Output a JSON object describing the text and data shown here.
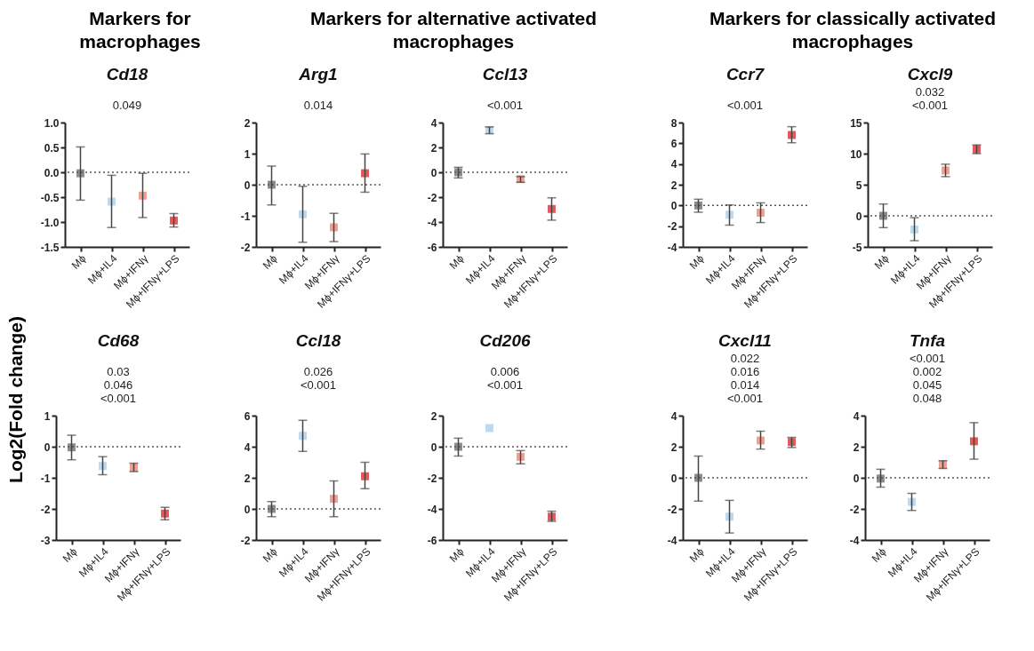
{
  "chart_data": [
    {
      "type": "scatter",
      "title": "Cd18",
      "subtitle": "Markers for macrophages",
      "ylabel": "Log2(Fold change)",
      "categories": [
        "Mϕ",
        "Mϕ+IL4",
        "Mϕ+IFNγ",
        "Mϕ+IFNγ+LPS"
      ],
      "values": [
        -0.02,
        -0.59,
        -0.47,
        -0.97
      ],
      "errors": [
        [
          -0.56,
          0.51
        ],
        [
          -1.11,
          -0.06
        ],
        [
          -0.91,
          -0.02
        ],
        [
          -1.1,
          -0.83
        ]
      ],
      "colors": [
        "#8c8c8c",
        "#bcd9ee",
        "#f0a090",
        "#e05a5a"
      ],
      "marker": "square",
      "ylim": [
        -1.5,
        1
      ],
      "yticks": [
        -1.5,
        {
          "value": -1,
          "label": "-1.0"
        },
        -0.5,
        {
          "value": 0,
          "label": "0.0"
        },
        0.5,
        {
          "value": 1,
          "label": "1.0"
        }
      ],
      "ref_lines": [
        {
          "axis": "y",
          "value": 0,
          "line_style": "dotted"
        }
      ],
      "annotations": [
        "0.049"
      ]
    },
    {
      "type": "scatter",
      "title": "Arg1",
      "subtitle": "Markers for alternative activated macrophages",
      "categories": [
        "Mϕ",
        "Mϕ+IL4",
        "Mϕ+IFNγ",
        "Mϕ+IFNγ+LPS"
      ],
      "values": [
        0,
        -0.95,
        -1.37,
        0.37
      ],
      "errors": [
        [
          -0.65,
          0.6
        ],
        [
          -1.85,
          -0.05
        ],
        [
          -1.83,
          -0.92
        ],
        [
          -0.24,
          0.99
        ]
      ],
      "colors": [
        "#8c8c8c",
        "#bcd9ee",
        "#f0a090",
        "#e05a5a"
      ],
      "marker": "square",
      "ylim": [
        -2,
        2
      ],
      "yticks": [
        -2,
        -1,
        0,
        1,
        2
      ],
      "ref_lines": [
        {
          "axis": "y",
          "value": 0,
          "line_style": "dotted"
        }
      ],
      "annotations": [
        "0.014"
      ]
    },
    {
      "type": "scatter",
      "title": "Ccl13",
      "categories": [
        "Mϕ",
        "Mϕ+IL4",
        "Mϕ+IFNγ",
        "Mϕ+IFNγ+LPS"
      ],
      "values": [
        0,
        3.4,
        -0.55,
        -2.95
      ],
      "errors": [
        [
          -0.45,
          0.4
        ],
        [
          3.1,
          3.65
        ],
        [
          -0.8,
          -0.35
        ],
        [
          -3.85,
          -2.05
        ]
      ],
      "colors": [
        "#8c8c8c",
        "#bcd9ee",
        "#f0a090",
        "#e05a5a"
      ],
      "marker": "square",
      "ylim": [
        -6,
        4
      ],
      "yticks": [
        -6,
        -4,
        -2,
        0,
        2,
        4
      ],
      "ref_lines": [
        {
          "axis": "y",
          "value": 0,
          "line_style": "dotted"
        }
      ],
      "annotations": [
        "<0.001"
      ]
    },
    {
      "type": "scatter",
      "title": "Ccr7",
      "subtitle": "Markers for classically activated macrophages",
      "categories": [
        "Mϕ",
        "Mϕ+IL4",
        "Mϕ+IFNγ",
        "Mϕ+IFNγ+LPS"
      ],
      "values": [
        0,
        -0.9,
        -0.7,
        6.8
      ],
      "errors": [
        [
          -0.65,
          0.6
        ],
        [
          -1.9,
          0.05
        ],
        [
          -1.65,
          0.25
        ],
        [
          6.05,
          7.6
        ]
      ],
      "colors": [
        "#8c8c8c",
        "#bcd9ee",
        "#f0a090",
        "#e05a5a"
      ],
      "marker": "square",
      "ylim": [
        -4,
        8
      ],
      "yticks": [
        -4,
        -2,
        0,
        2,
        4,
        6,
        8
      ],
      "ref_lines": [
        {
          "axis": "y",
          "value": 0,
          "line_style": "dotted"
        }
      ],
      "annotations": [
        "<0.001"
      ]
    },
    {
      "type": "scatter",
      "title": "Cxcl9",
      "categories": [
        "Mϕ",
        "Mϕ+IL4",
        "Mϕ+IFNγ",
        "Mϕ+IFNγ+LPS"
      ],
      "values": [
        0,
        -2.2,
        7.3,
        10.7
      ],
      "errors": [
        [
          -1.9,
          1.9
        ],
        [
          -4,
          -0.3
        ],
        [
          6.3,
          8.3
        ],
        [
          10,
          11.4
        ]
      ],
      "colors": [
        "#8c8c8c",
        "#bcd9ee",
        "#f0a090",
        "#e05a5a"
      ],
      "marker": "square",
      "ylim": [
        -5,
        15
      ],
      "yticks": [
        -5,
        0,
        5,
        10,
        15
      ],
      "ref_lines": [
        {
          "axis": "y",
          "value": 0,
          "line_style": "dotted"
        }
      ],
      "annotations": [
        "0.032",
        "<0.001"
      ]
    },
    {
      "type": "scatter",
      "title": "Cd68",
      "categories": [
        "Mϕ",
        "Mϕ+IL4",
        "Mϕ+IFNγ",
        "Mϕ+IFNγ+LPS"
      ],
      "values": [
        -0.02,
        -0.62,
        -0.67,
        -2.15
      ],
      "errors": [
        [
          -0.42,
          0.37
        ],
        [
          -0.9,
          -0.32
        ],
        [
          -0.8,
          -0.53
        ],
        [
          -2.35,
          -1.95
        ]
      ],
      "colors": [
        "#8c8c8c",
        "#bcd9ee",
        "#f0a090",
        "#e05a5a"
      ],
      "marker": "square",
      "ylim": [
        -3,
        1
      ],
      "yticks": [
        -3,
        -2,
        -1,
        0,
        1
      ],
      "ref_lines": [
        {
          "axis": "y",
          "value": 0,
          "line_style": "dotted"
        }
      ],
      "annotations": [
        "0.03",
        "0.046",
        "<0.001"
      ]
    },
    {
      "type": "scatter",
      "title": "Ccl18",
      "categories": [
        "Mϕ",
        "Mϕ+IL4",
        "Mϕ+IFNγ",
        "Mϕ+IFNγ+LPS"
      ],
      "values": [
        0,
        4.7,
        0.65,
        2.1
      ],
      "errors": [
        [
          -0.5,
          0.47
        ],
        [
          3.7,
          5.7
        ],
        [
          -0.5,
          1.8
        ],
        [
          1.3,
          3
        ]
      ],
      "colors": [
        "#8c8c8c",
        "#bcd9ee",
        "#f0a090",
        "#e05a5a"
      ],
      "marker": "square",
      "ylim": [
        -2,
        6
      ],
      "yticks": [
        -2,
        0,
        2,
        4,
        6
      ],
      "ref_lines": [
        {
          "axis": "y",
          "value": 0,
          "line_style": "dotted"
        }
      ],
      "annotations": [
        "0.026",
        "<0.001"
      ]
    },
    {
      "type": "scatter",
      "title": "Cd206",
      "categories": [
        "Mϕ",
        "Mϕ+IL4",
        "Mϕ+IFNγ",
        "Mϕ+IFNγ+LPS"
      ],
      "values": [
        0,
        1.2,
        -0.65,
        -4.5
      ],
      "errors": [
        [
          -0.6,
          0.55
        ],
        null,
        [
          -1.1,
          -0.25
        ],
        [
          -4.8,
          -4.15
        ]
      ],
      "colors": [
        "#8c8c8c",
        "#bcd9ee",
        "#f0a090",
        "#e05a5a"
      ],
      "marker": "square",
      "ylim": [
        -6,
        2
      ],
      "yticks": [
        -6,
        -4,
        -2,
        0,
        2
      ],
      "ref_lines": [
        {
          "axis": "y",
          "value": 0,
          "line_style": "dotted"
        }
      ],
      "annotations": [
        "0.006",
        "<0.001"
      ]
    },
    {
      "type": "scatter",
      "title": "Cxcl11",
      "categories": [
        "Mϕ",
        "Mϕ+IL4",
        "Mϕ+IFNγ",
        "Mϕ+IFNγ+LPS"
      ],
      "values": [
        0,
        -2.5,
        2.4,
        2.3
      ],
      "errors": [
        [
          -1.5,
          1.4
        ],
        [
          -3.55,
          -1.45
        ],
        [
          1.85,
          3
        ],
        [
          1.95,
          2.6
        ]
      ],
      "colors": [
        "#8c8c8c",
        "#bcd9ee",
        "#f0a090",
        "#e05a5a"
      ],
      "marker": "square",
      "ylim": [
        -4,
        4
      ],
      "yticks": [
        -4,
        -2,
        0,
        2,
        4
      ],
      "ref_lines": [
        {
          "axis": "y",
          "value": 0,
          "line_style": "dotted"
        }
      ],
      "annotations": [
        "0.022",
        "0.016",
        "0.014",
        "<0.001"
      ]
    },
    {
      "type": "scatter",
      "title": "Tnfa",
      "categories": [
        "Mϕ",
        "Mϕ+IL4",
        "Mϕ+IFNγ",
        "Mϕ+IFNγ+LPS"
      ],
      "values": [
        -0.05,
        -1.55,
        0.85,
        2.35
      ],
      "errors": [
        [
          -0.6,
          0.55
        ],
        [
          -2.1,
          -1
        ],
        [
          0.6,
          1.1
        ],
        [
          1.2,
          3.55
        ]
      ],
      "colors": [
        "#8c8c8c",
        "#bcd9ee",
        "#f0a090",
        "#e05a5a"
      ],
      "marker": "square",
      "ylim": [
        -4,
        4
      ],
      "yticks": [
        -4,
        -2,
        0,
        2,
        4
      ],
      "ref_lines": [
        {
          "axis": "y",
          "value": 0,
          "line_style": "dotted"
        }
      ],
      "annotations": [
        "<0.001",
        "0.002",
        "0.045",
        "0.048"
      ]
    }
  ]
}
